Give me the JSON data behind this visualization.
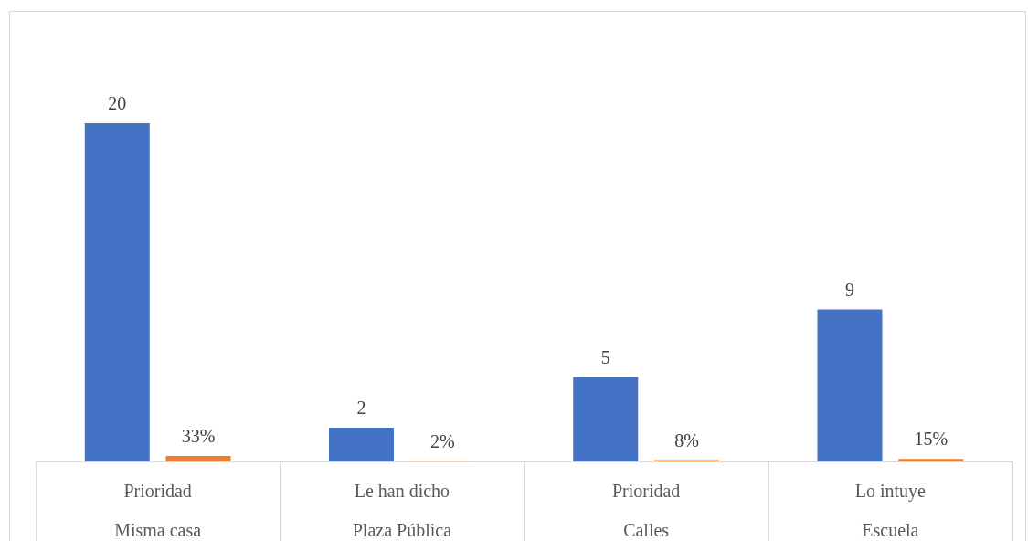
{
  "chart_data": {
    "type": "bar",
    "categories": [
      "Prioridad\nMisma casa",
      "Le han dicho\nPlaza Pública",
      "Prioridad\nCalles",
      "Lo intuye\nEscuela"
    ],
    "series": [
      {
        "color": "#4472c4",
        "values": [
          20,
          2,
          5,
          9
        ],
        "data_labels": true
      },
      {
        "color": "#ed7d31",
        "values": [
          0.33,
          0.02,
          0.08,
          0.15
        ],
        "value_labels": [
          "33%",
          "2%",
          "8%",
          "15%"
        ]
      }
    ],
    "grid": false
  }
}
